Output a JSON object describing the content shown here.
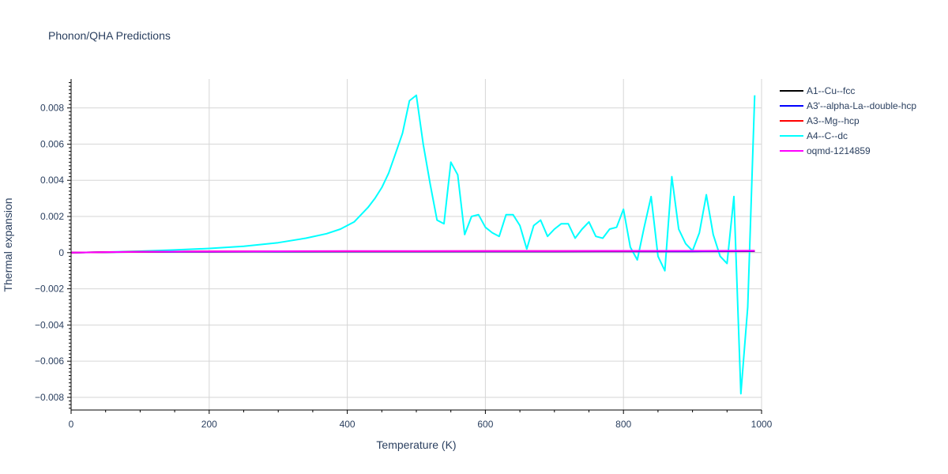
{
  "chart_data": {
    "type": "line",
    "title": "Phonon/QHA Predictions",
    "xlabel": "Temperature (K)",
    "ylabel": "Thermal expansion",
    "xlim": [
      0,
      1000
    ],
    "ylim": [
      -0.0087,
      0.0096
    ],
    "x_ticks": [
      0,
      200,
      400,
      600,
      800,
      1000
    ],
    "y_ticks": [
      -0.008,
      -0.006,
      -0.004,
      -0.002,
      0,
      0.002,
      0.004,
      0.006,
      0.008
    ],
    "x_tick_labels": [
      "0",
      "200",
      "400",
      "600",
      "800",
      "1000"
    ],
    "y_tick_labels": [
      "−0.008",
      "−0.006",
      "−0.004",
      "−0.002",
      "0",
      "0.002",
      "0.004",
      "0.006",
      "0.008"
    ],
    "grid": true,
    "legend_position": "right",
    "series": [
      {
        "name": "A1--Cu--fcc",
        "color": "#000000",
        "x": [
          0,
          50,
          100,
          200,
          300,
          400,
          500,
          600,
          700,
          800,
          900,
          990
        ],
        "y": [
          0,
          3e-05,
          5e-05,
          6e-05,
          6e-05,
          7e-05,
          7e-05,
          7e-05,
          7e-05,
          8e-05,
          8e-05,
          8e-05
        ]
      },
      {
        "name": "A3'--alpha-La--double-hcp",
        "color": "#0000ff",
        "x": [
          0,
          50,
          100,
          200,
          300,
          400,
          500,
          600,
          700,
          800,
          900,
          990
        ],
        "y": [
          0,
          2e-05,
          4e-05,
          5e-05,
          6e-05,
          6e-05,
          6e-05,
          7e-05,
          7e-05,
          7e-05,
          7e-05,
          8e-05
        ]
      },
      {
        "name": "A3--Mg--hcp",
        "color": "#ff0000",
        "x": [
          0,
          50,
          100,
          200,
          300,
          400,
          500,
          600,
          700,
          800,
          900,
          990
        ],
        "y": [
          0,
          3e-05,
          5e-05,
          7e-05,
          8e-05,
          8e-05,
          8e-05,
          9e-05,
          9e-05,
          9e-05,
          0.0001,
          0.0001
        ]
      },
      {
        "name": "A4--C--dc",
        "color": "#00ffff",
        "x": [
          0,
          50,
          100,
          150,
          200,
          250,
          300,
          340,
          370,
          390,
          410,
          420,
          430,
          440,
          450,
          460,
          470,
          480,
          490,
          500,
          510,
          520,
          530,
          540,
          550,
          560,
          570,
          580,
          590,
          600,
          610,
          620,
          630,
          640,
          650,
          660,
          670,
          680,
          690,
          700,
          710,
          720,
          730,
          740,
          750,
          760,
          770,
          780,
          790,
          800,
          810,
          820,
          830,
          840,
          850,
          860,
          870,
          880,
          890,
          900,
          910,
          920,
          930,
          940,
          950,
          960,
          970,
          980,
          990
        ],
        "y": [
          0,
          3e-05,
          8e-05,
          0.00015,
          0.00023,
          0.00035,
          0.00055,
          0.0008,
          0.00105,
          0.0013,
          0.0017,
          0.0021,
          0.0025,
          0.003,
          0.0036,
          0.0044,
          0.0055,
          0.0066,
          0.0084,
          0.0087,
          0.006,
          0.0038,
          0.0018,
          0.0016,
          0.005,
          0.0043,
          0.001,
          0.002,
          0.0021,
          0.0014,
          0.0011,
          0.0009,
          0.0021,
          0.0021,
          0.0015,
          0.0002,
          0.0015,
          0.0018,
          0.0009,
          0.0013,
          0.0016,
          0.0016,
          0.0008,
          0.0013,
          0.0017,
          0.0009,
          0.0008,
          0.0013,
          0.0014,
          0.0024,
          0.0003,
          -0.0004,
          0.0014,
          0.0031,
          -0.0002,
          -0.001,
          0.0042,
          0.0013,
          0.0005,
          0.0001,
          0.0011,
          0.0032,
          0.001,
          -0.0002,
          -0.0006,
          0.0031,
          -0.0078,
          -0.003,
          0.0087
        ]
      },
      {
        "name": "oqmd-1214859",
        "color": "#ff00ff",
        "x": [
          0,
          50,
          100,
          200,
          300,
          400,
          500,
          600,
          700,
          800,
          900,
          990
        ],
        "y": [
          0,
          3e-05,
          5e-05,
          7e-05,
          8e-05,
          9e-05,
          9e-05,
          9e-05,
          9e-05,
          0.0001,
          0.0001,
          0.00011
        ]
      }
    ]
  }
}
